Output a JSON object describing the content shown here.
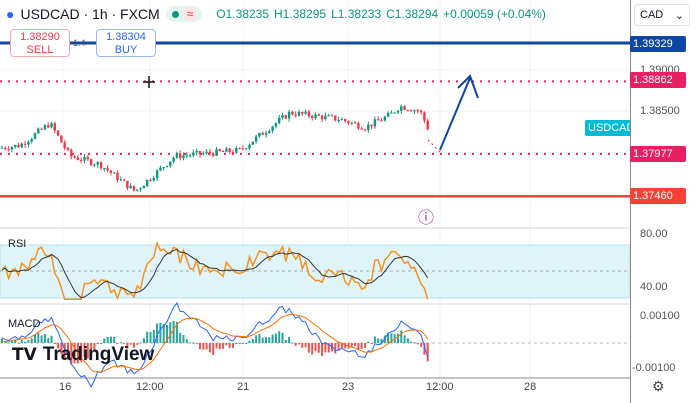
{
  "header": {
    "symbol": "USDCAD · 1h · FXCM",
    "open": "O1.38235",
    "high": "H1.38295",
    "low": "L1.38233",
    "close": "C1.38294",
    "change": "+0.00059 (+0.04%)"
  },
  "trade": {
    "sell_price": "1.38290",
    "sell_label": "SELL",
    "buy_price": "1.38304",
    "buy_label": "BUY",
    "spread": "1.4"
  },
  "currency": "CAD",
  "price_axis": {
    "ticks": [
      "1.39000",
      "1.38500"
    ],
    "tags": [
      {
        "value": "1.39329",
        "color": "#0d47a1"
      },
      {
        "value": "1.38862",
        "color": "#e91e63"
      },
      {
        "value": "1.37977",
        "color": "#e91e63"
      },
      {
        "value": "1.37460",
        "color": "#f44336"
      }
    ]
  },
  "symbol_tag": "USDCAD",
  "rsi": {
    "label": "RSI",
    "ticks": [
      "80.00",
      "40.00"
    ]
  },
  "macd": {
    "label": "MACD",
    "ticks": [
      "0.00100",
      "-0.00100"
    ]
  },
  "time_axis": [
    "16",
    "12:00",
    "21",
    "23",
    "12:00",
    "28"
  ],
  "brand": "TradingView",
  "chart_data": {
    "type": "candlestick",
    "keypoints": [
      [
        0,
        1.3805
      ],
      [
        20,
        1.3808
      ],
      [
        50,
        1.3835
      ],
      [
        70,
        1.3795
      ],
      [
        100,
        1.3785
      ],
      [
        135,
        1.3752
      ],
      [
        150,
        1.3768
      ],
      [
        175,
        1.3795
      ],
      [
        240,
        1.3802
      ],
      [
        270,
        1.383
      ],
      [
        290,
        1.3848
      ],
      [
        340,
        1.384
      ],
      [
        365,
        1.383
      ],
      [
        390,
        1.3845
      ],
      [
        400,
        1.3856
      ],
      [
        420,
        1.385
      ],
      [
        428,
        1.3829
      ]
    ],
    "levels": [
      1.39329,
      1.38862,
      1.37977,
      1.3746
    ]
  }
}
